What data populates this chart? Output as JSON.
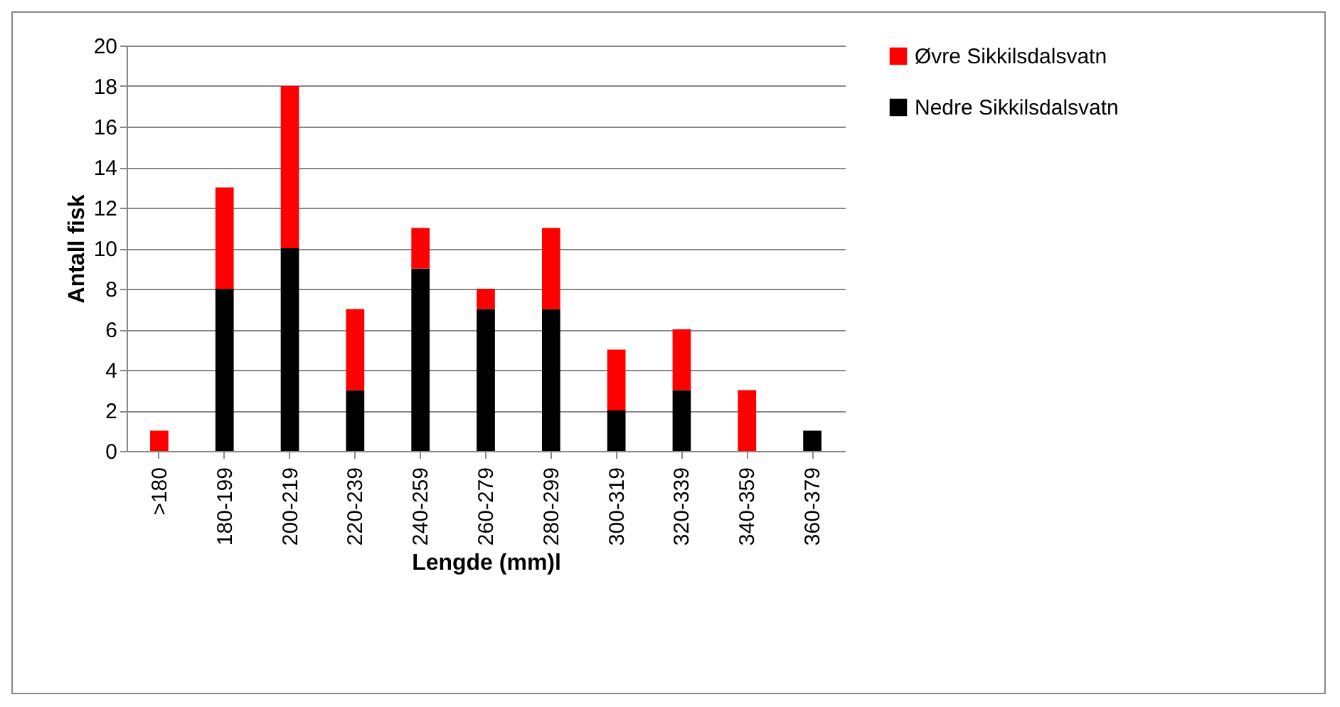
{
  "chart_data": {
    "type": "bar",
    "stacked": true,
    "xlabel": "Lengde (mm)l",
    "ylabel": "Antall fisk",
    "categories": [
      ">180",
      "180-199",
      "200-219",
      "220-239",
      "240-259",
      "260-279",
      "280-299",
      "300-319",
      "320-339",
      "340-359",
      "360-379"
    ],
    "series": [
      {
        "name": "Nedre Sikkilsdalsvatn",
        "color": "#000000",
        "values": [
          0,
          8,
          10,
          3,
          9,
          7,
          7,
          2,
          3,
          0,
          1
        ]
      },
      {
        "name": "Øvre Sikkilsdalsvatn",
        "color": "#ff0000",
        "values": [
          1,
          5,
          8,
          4,
          2,
          1,
          4,
          3,
          3,
          3,
          0
        ]
      }
    ],
    "ylim": [
      0,
      20
    ],
    "yticks": [
      0,
      2,
      4,
      6,
      8,
      10,
      12,
      14,
      16,
      18,
      20
    ],
    "grid": "y",
    "legend": "right"
  }
}
